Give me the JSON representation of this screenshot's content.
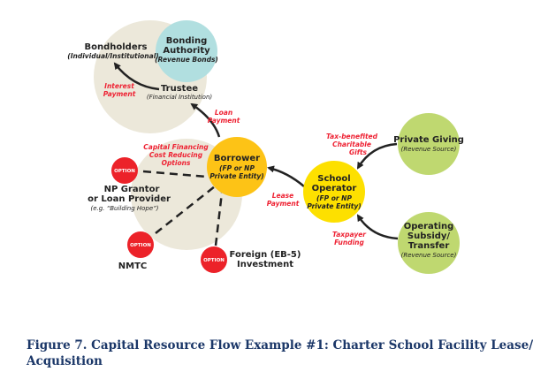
{
  "colors": {
    "beige": "#ece8da",
    "cyan": "#b1dfe0",
    "orange": "#fdc316",
    "yellow": "#fde000",
    "green": "#bfd870",
    "red": "#ec2229",
    "label_red": "#ee2233",
    "caption": "#1b3768"
  },
  "nodes": {
    "bondholders": {
      "title": "Bondholders",
      "sub": "(Individual/Institutional)"
    },
    "bonding_authority": {
      "title1": "Bonding",
      "title2": "Authority",
      "sub": "(Revenue Bonds)"
    },
    "trustee": {
      "title": "Trustee",
      "sub": "(Financial Institution)"
    },
    "borrower": {
      "title": "Borrower",
      "sub1": "(FP or NP",
      "sub2": "Private Entity)"
    },
    "school_operator": {
      "title1": "School",
      "title2": "Operator",
      "sub1": "(FP or NP",
      "sub2": "Private Entity)"
    },
    "private_giving": {
      "title": "Private Giving",
      "sub": "(Revenue Source)"
    },
    "operating_subsidy": {
      "title1": "Operating",
      "title2": "Subsidy/",
      "title3": "Transfer",
      "sub": "(Revenue Source)"
    },
    "np_grantor": {
      "badge": "OPTION",
      "title1": "NP Grantor",
      "title2": "or Loan Provider",
      "sub": "(e.g. “Building Hope”)"
    },
    "nmtc": {
      "badge": "OPTION",
      "title": "NMTC"
    },
    "foreign": {
      "badge": "OPTION",
      "title1": "Foreign (EB-5)",
      "title2": "Investment"
    }
  },
  "flows": {
    "interest_payment": [
      "Interest",
      "Payment"
    ],
    "loan_payment": [
      "Loan",
      "Payment"
    ],
    "capital_financing": [
      "Capital Financing",
      "Cost Reducing",
      "Options"
    ],
    "lease_payment": [
      "Lease",
      "Payment"
    ],
    "tax_benefited": [
      "Tax-benefited",
      "Charitable",
      "Gifts"
    ],
    "taxpayer_funding": [
      "Taxpayer",
      "Funding"
    ]
  },
  "caption": {
    "line1": "Figure 7. Capital Resource Flow Example #1: Charter School Facility Lease/",
    "line2": "Acquisition"
  }
}
